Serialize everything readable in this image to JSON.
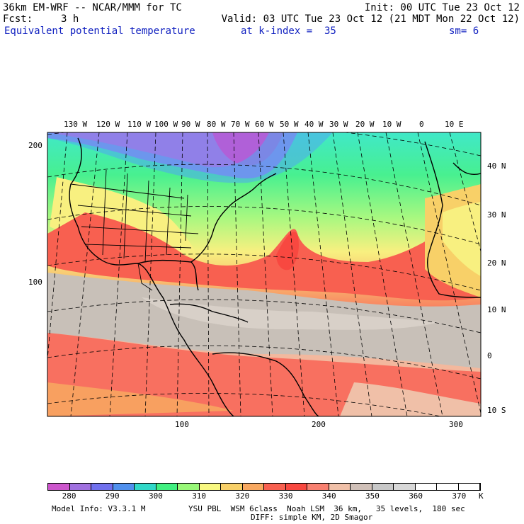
{
  "header": {
    "model": "36km EM-WRF -- NCAR/MMM for TC",
    "init": "Init: 00 UTC Tue 23 Oct 12",
    "fcst_label": "Fcst:",
    "fcst_value": "3 h",
    "valid": "Valid: 03 UTC Tue 23 Oct 12 (21 MDT Mon 22 Oct 12)",
    "field": "Equivalent potential temperature",
    "level": "at k-index =  35",
    "smoothing": "sm= 6"
  },
  "map": {
    "top_lon_labels": [
      "130 W",
      "120 W",
      "110 W",
      "100 W",
      "90 W",
      "80 W",
      "70 W",
      "60 W",
      "50 W",
      "40 W",
      "30 W",
      "20 W",
      "10 W",
      "0",
      "10 E"
    ],
    "right_lat_labels": [
      "40 N",
      "30 N",
      "20 N",
      "10 N",
      "0",
      "10 S"
    ],
    "left_grid_labels": [
      "200",
      "100"
    ],
    "bottom_grid_labels": [
      "100",
      "200",
      "300"
    ]
  },
  "colorbar": {
    "ticks": [
      "280",
      "290",
      "300",
      "310",
      "320",
      "330",
      "340",
      "350",
      "360",
      "370"
    ],
    "unit": "K",
    "colors": [
      "#cc55cc",
      "#a070e0",
      "#7070ee",
      "#5090ee",
      "#30d8c8",
      "#40f080",
      "#98f878",
      "#f8f880",
      "#f8d068",
      "#f8a860",
      "#f86050",
      "#f84840",
      "#f88070",
      "#f0c0a8",
      "#d0c0b8",
      "#c8c8c8",
      "#d8d8d8",
      "#ffffff",
      "#ffffff",
      "#ffffff"
    ]
  },
  "footer": {
    "model_info": "Model Info: V3.3.1 M",
    "physics": "YSU PBL  WSM 6class  Noah LSM  36 km,   35 levels,  180 sec",
    "diffusion": "DIFF: simple KM, 2D Smagor"
  }
}
